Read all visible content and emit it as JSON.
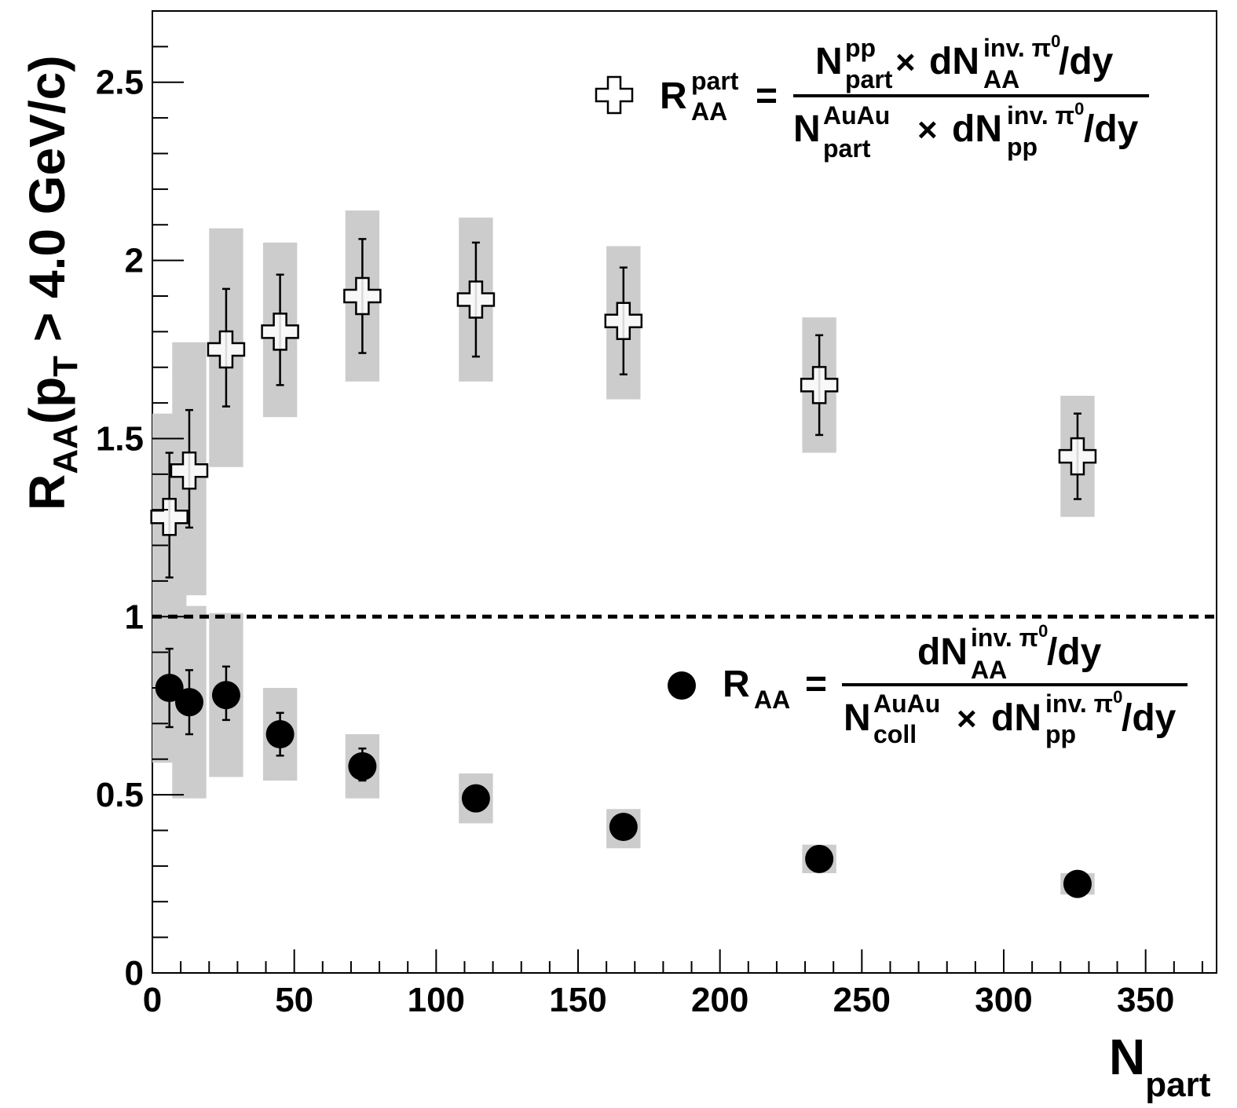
{
  "chart_data": {
    "type": "scatter",
    "title": "",
    "xlabel": "N",
    "xlabel_sub": "part",
    "ylabel": {
      "main": "R",
      "sub": "AA",
      "paren_open": "(p",
      "pt_sub": "T",
      "rest": " > 4.0 GeV/c)"
    },
    "xlim": [
      0,
      375
    ],
    "ylim": [
      0,
      2.7
    ],
    "x_ticks": [
      0,
      50,
      100,
      150,
      200,
      250,
      300,
      350
    ],
    "x_tick_labels": [
      "0",
      "50",
      "100",
      "150",
      "200",
      "250",
      "300",
      "350"
    ],
    "y_ticks": [
      0,
      0.5,
      1,
      1.5,
      2,
      2.5
    ],
    "y_tick_labels": [
      "0",
      "0.5",
      "1",
      "1.5",
      "2",
      "2.5"
    ],
    "reference_line": 1.0,
    "grid": false,
    "series": [
      {
        "marker": "open-cross",
        "legend_placement": "top-right",
        "x": [
          6,
          13,
          26,
          45,
          74,
          114,
          166,
          235,
          326
        ],
        "y": [
          1.28,
          1.41,
          1.75,
          1.8,
          1.9,
          1.89,
          1.83,
          1.65,
          1.45
        ],
        "stat_lo": [
          1.11,
          1.25,
          1.59,
          1.65,
          1.74,
          1.73,
          1.68,
          1.51,
          1.33
        ],
        "stat_hi": [
          1.46,
          1.58,
          1.92,
          1.96,
          2.06,
          2.05,
          1.98,
          1.79,
          1.57
        ],
        "sys_lo": [
          0.99,
          1.06,
          1.42,
          1.56,
          1.66,
          1.66,
          1.61,
          1.46,
          1.28
        ],
        "sys_hi": [
          1.57,
          1.77,
          2.09,
          2.05,
          2.14,
          2.12,
          2.04,
          1.84,
          1.62
        ],
        "sys_halfwidth": [
          6,
          6,
          6,
          6,
          6,
          6,
          6,
          6,
          6
        ]
      },
      {
        "marker": "filled-circle",
        "legend_placement": "middle-right",
        "x": [
          6,
          13,
          26,
          45,
          74,
          114,
          166,
          235,
          326
        ],
        "y": [
          0.8,
          0.76,
          0.78,
          0.67,
          0.58,
          0.49,
          0.41,
          0.32,
          0.25
        ],
        "stat_lo": [
          0.69,
          0.67,
          0.71,
          0.61,
          0.54,
          0.49,
          0.41,
          0.32,
          0.25
        ],
        "stat_hi": [
          0.91,
          0.85,
          0.86,
          0.73,
          0.63,
          0.49,
          0.41,
          0.32,
          0.25
        ],
        "sys_lo": [
          0.59,
          0.49,
          0.55,
          0.54,
          0.49,
          0.42,
          0.35,
          0.28,
          0.22
        ],
        "sys_hi": [
          1.01,
          1.03,
          1.01,
          0.8,
          0.67,
          0.56,
          0.46,
          0.36,
          0.28
        ],
        "sys_halfwidth": [
          6,
          6,
          6,
          6,
          6,
          6,
          6,
          6,
          6
        ]
      }
    ],
    "legend": {
      "part": {
        "label_main": "R",
        "label_sup": "part",
        "label_sub": "AA",
        "equals": "=",
        "numerator": {
          "n": "N",
          "n_sup": "pp",
          "n_sub": "part",
          "times": "×",
          "dn": "dN",
          "dn_sup": "inv. π",
          "dn_sup2": "0",
          "dn_sub": "AA",
          "tail": "/dy"
        },
        "denominator": {
          "n": "N",
          "n_sup": "AuAu",
          "n_sub": "part",
          "times": "×",
          "dn": "dN",
          "dn_sup": "inv. π",
          "dn_sup2": "0",
          "dn_sub": "pp",
          "tail": "/dy"
        }
      },
      "coll": {
        "label_main": "R",
        "label_sub": "AA",
        "equals": "=",
        "numerator": {
          "dn": "dN",
          "dn_sup": "inv. π",
          "dn_sup2": "0",
          "dn_sub": "AA",
          "tail": "/dy"
        },
        "denominator": {
          "n": "N",
          "n_sup": "AuAu",
          "n_sub": "coll",
          "times": "×",
          "dn": "dN",
          "dn_sup": "inv. π",
          "dn_sup2": "0",
          "dn_sub": "pp",
          "tail": "/dy"
        }
      }
    },
    "colors": {
      "sys_band": "#cccccc",
      "marker": "#000000",
      "open_fill": "#ffffff"
    }
  }
}
